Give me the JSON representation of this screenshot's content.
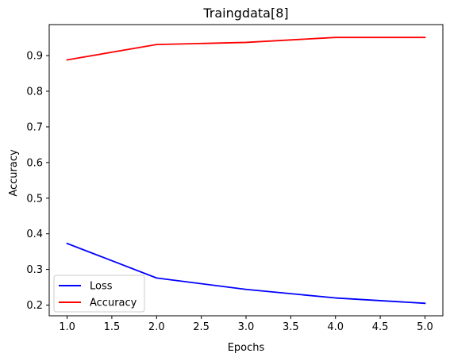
{
  "chart_data": {
    "type": "line",
    "title": "Traingdata[8]",
    "xlabel": "Epochs",
    "ylabel": "Accuracy",
    "x": [
      1.0,
      2.0,
      3.0,
      4.0,
      5.0
    ],
    "xlim": [
      0.8,
      5.2
    ],
    "ylim": [
      0.17,
      0.987
    ],
    "xticks": [
      "1.0",
      "1.5",
      "2.0",
      "2.5",
      "3.0",
      "3.5",
      "4.0",
      "4.5",
      "5.0"
    ],
    "yticks": [
      "0.2",
      "0.3",
      "0.4",
      "0.5",
      "0.6",
      "0.7",
      "0.8",
      "0.9"
    ],
    "grid": false,
    "legend_position": "lower-left",
    "series": [
      {
        "name": "Loss",
        "color": "#0000ff",
        "values": [
          0.373,
          0.276,
          0.244,
          0.22,
          0.205
        ]
      },
      {
        "name": "Accuracy",
        "color": "#ff0000",
        "values": [
          0.888,
          0.931,
          0.937,
          0.951,
          0.951
        ]
      }
    ]
  }
}
